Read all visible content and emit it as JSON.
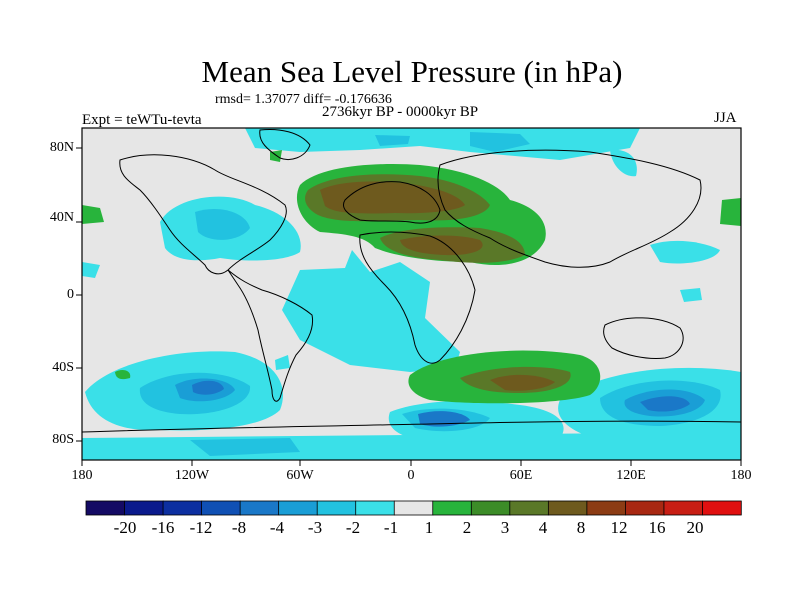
{
  "title": "Mean Sea Level Pressure (in hPa)",
  "stats": "rmsd= 1.37077 diff= -0.176636",
  "period": "2736kyr BP - 0000kyr BP",
  "experiment": "Expt = teWTu-tevta",
  "season": "JJA",
  "lat_labels": [
    "80N",
    "40N",
    "0",
    "40S",
    "80S"
  ],
  "lon_labels": [
    "180",
    "120W",
    "60W",
    "0",
    "60E",
    "120E",
    "180"
  ],
  "colorbar": {
    "labels": [
      "-20",
      "-16",
      "-12",
      "-8",
      "-4",
      "-3",
      "-2",
      "-1",
      "1",
      "2",
      "3",
      "4",
      "8",
      "12",
      "16",
      "20"
    ],
    "colors": [
      "#140a64",
      "#0a1a8c",
      "#0c2fa0",
      "#1050b4",
      "#1a78c8",
      "#1a9ed6",
      "#22c2e0",
      "#3ae0e8",
      "#e6e6e6",
      "#28b43c",
      "#3c8c28",
      "#5a7828",
      "#6e5a1e",
      "#8c3c14",
      "#a82812",
      "#c81e14",
      "#e01010"
    ]
  }
}
